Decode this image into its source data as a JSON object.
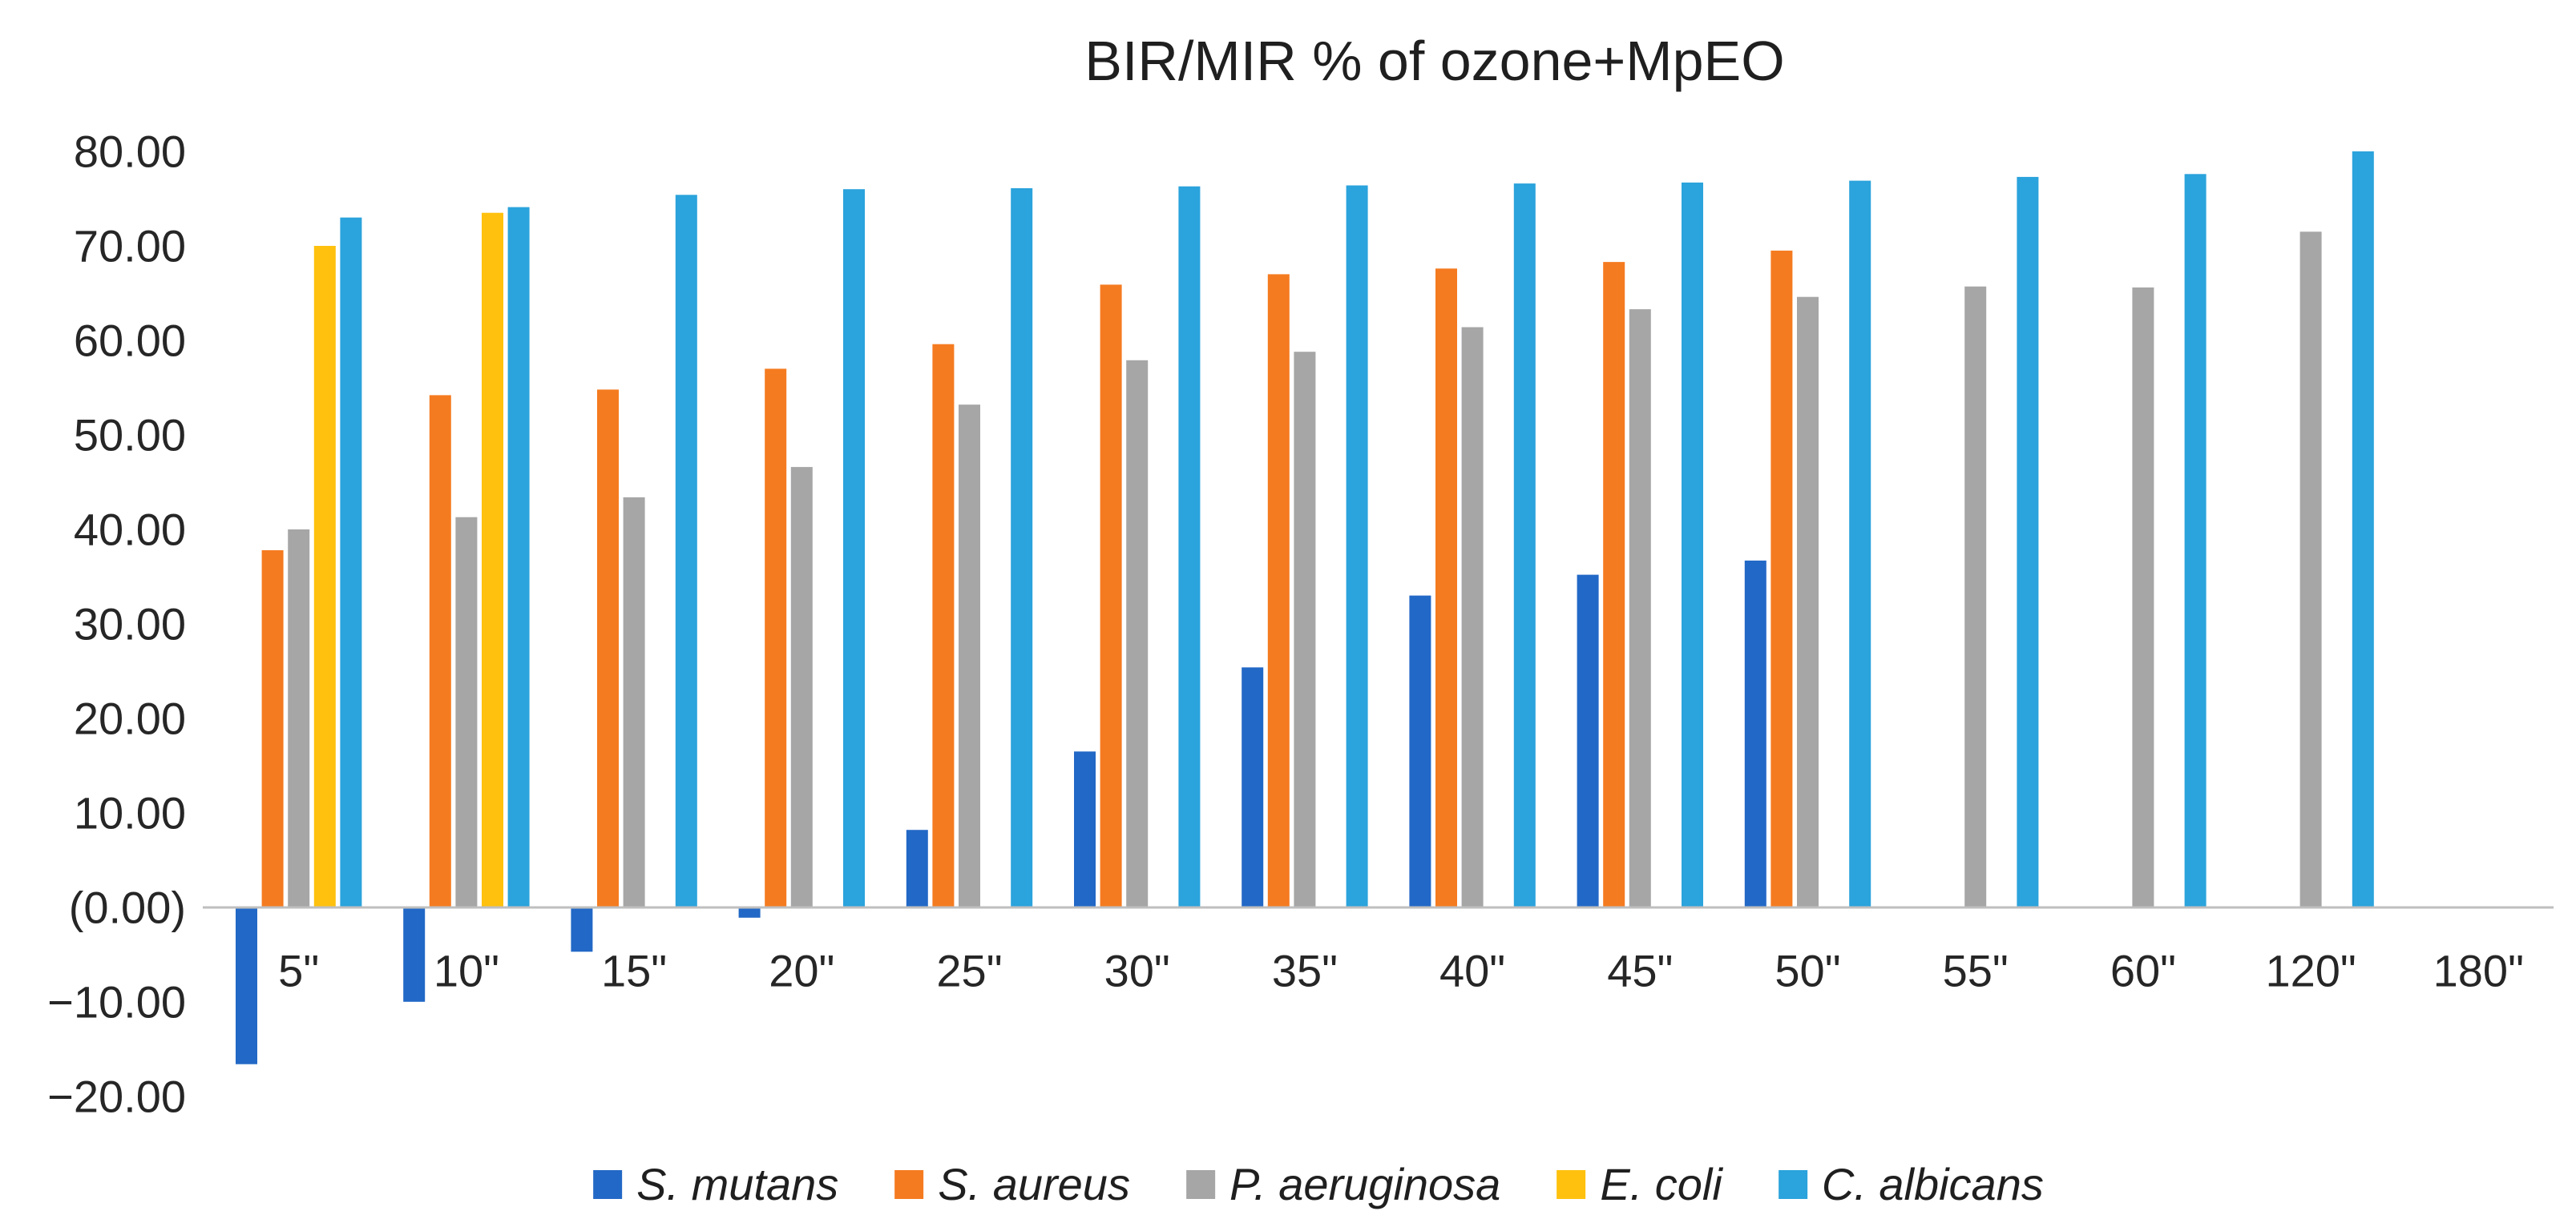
{
  "chart_data": {
    "type": "bar",
    "title": "BIR/MIR % of ozone+MpEO",
    "categories": [
      "5\"",
      "10\"",
      "15\"",
      "20\"",
      "25\"",
      "30\"",
      "35\"",
      "40\"",
      "45\"",
      "50\"",
      "55\"",
      "60\"",
      "120\"",
      "180\""
    ],
    "series": [
      {
        "name": "S. mutans",
        "color": "#2268C6",
        "values": [
          -16.5,
          -9.9,
          -4.6,
          -1.0,
          8.2,
          16.5,
          25.4,
          33.0,
          35.2,
          36.7,
          null,
          null,
          null,
          null
        ]
      },
      {
        "name": "S. aureus",
        "color": "#F57B20",
        "values": [
          37.8,
          54.2,
          54.8,
          57.0,
          59.6,
          65.9,
          67.0,
          67.6,
          68.3,
          69.5,
          null,
          null,
          null,
          null
        ]
      },
      {
        "name": "P. aeruginosa",
        "color": "#A6A6A6",
        "values": [
          40.0,
          41.3,
          43.4,
          46.6,
          53.2,
          57.9,
          58.8,
          61.4,
          63.3,
          64.6,
          65.7,
          65.6,
          71.5,
          null
        ]
      },
      {
        "name": "E. coli",
        "color": "#FFC10D",
        "values": [
          70.0,
          73.5,
          null,
          null,
          null,
          null,
          null,
          null,
          null,
          null,
          null,
          null,
          null,
          null
        ]
      },
      {
        "name": "C. albicans",
        "color": "#2BA3DC",
        "values": [
          73.0,
          74.1,
          75.4,
          76.0,
          76.1,
          76.3,
          76.4,
          76.6,
          76.7,
          76.9,
          77.3,
          77.6,
          80.0,
          null
        ]
      }
    ],
    "y_ticks": [
      {
        "label": "80.00",
        "value": 80
      },
      {
        "label": "70.00",
        "value": 70
      },
      {
        "label": "60.00",
        "value": 60
      },
      {
        "label": "50.00",
        "value": 50
      },
      {
        "label": "40.00",
        "value": 40
      },
      {
        "label": "30.00",
        "value": 30
      },
      {
        "label": "20.00",
        "value": 20
      },
      {
        "label": "10.00",
        "value": 10
      },
      {
        "label": "(0.00)",
        "value": 0
      },
      {
        "label": "−10.00",
        "value": -10
      },
      {
        "label": "−20.00",
        "value": -20
      }
    ],
    "ylim": [
      -20,
      80
    ],
    "grid": false,
    "legend_position": "bottom",
    "axis_line_color": "#BFBFBF",
    "text_color": "#262626"
  }
}
